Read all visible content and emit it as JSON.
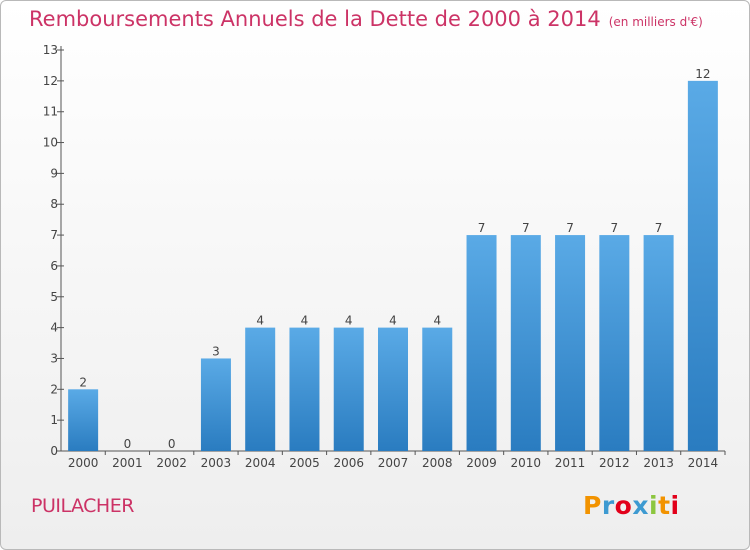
{
  "header": {
    "title": "Remboursements Annuels de la Dette de 2000 à 2014",
    "unit": "(en milliers d'€)"
  },
  "footer": {
    "city": "PUILACHER",
    "logo": "Proxiti",
    "logo_colors": [
      "#f29300",
      "#3d9ad1",
      "#e2001a",
      "#3d9ad1",
      "#8cc63f",
      "#f29300",
      "#e2001a"
    ]
  },
  "colors": {
    "bar_top": "#5aaae6",
    "bar_bottom": "#2a7cc0",
    "title": "#cc3366",
    "axis": "#555555"
  },
  "chart_data": {
    "type": "bar",
    "categories": [
      "2000",
      "2001",
      "2002",
      "2003",
      "2004",
      "2005",
      "2006",
      "2007",
      "2008",
      "2009",
      "2010",
      "2011",
      "2012",
      "2013",
      "2014"
    ],
    "values": [
      2,
      0,
      0,
      3,
      4,
      4,
      4,
      4,
      4,
      7,
      7,
      7,
      7,
      7,
      12
    ],
    "ylim": [
      0,
      13
    ],
    "yticks": [
      0,
      1,
      2,
      3,
      4,
      5,
      6,
      7,
      8,
      9,
      10,
      11,
      12,
      13
    ],
    "grid": false,
    "xlabel": "",
    "ylabel": ""
  }
}
